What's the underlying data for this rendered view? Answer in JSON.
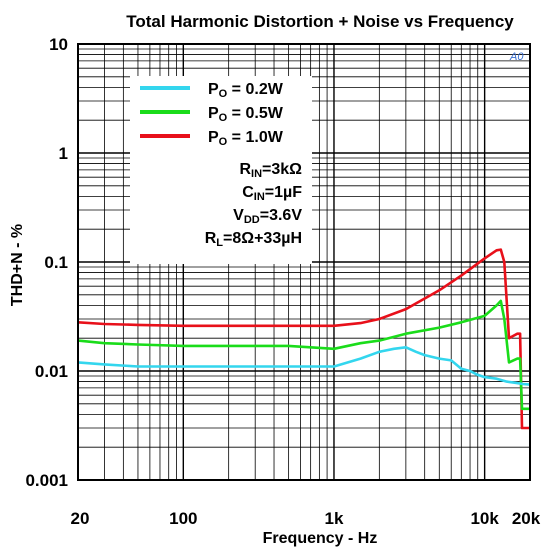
{
  "chart_data": {
    "type": "line",
    "title": "Total Harmonic Distortion + Noise vs  Frequency",
    "xlabel": "Frequency - Hz",
    "ylabel": "THD+N - %",
    "x_scale": "log",
    "y_scale": "log",
    "xlim": [
      20,
      20000
    ],
    "ylim": [
      0.001,
      10
    ],
    "x_ticks": [
      {
        "value": 20,
        "label": "20"
      },
      {
        "value": 100,
        "label": "100"
      },
      {
        "value": 1000,
        "label": "1k"
      },
      {
        "value": 10000,
        "label": "10k"
      },
      {
        "value": 20000,
        "label": "20k"
      }
    ],
    "y_ticks": [
      {
        "value": 10,
        "label": "10"
      },
      {
        "value": 1,
        "label": "1"
      },
      {
        "value": 0.1,
        "label": "0.1"
      },
      {
        "value": 0.01,
        "label": "0.01"
      },
      {
        "value": 0.001,
        "label": "0.001"
      }
    ],
    "grid": true,
    "legend_position": "top-left",
    "series": [
      {
        "name": "Po = 1.0W",
        "legend_main": "P",
        "legend_sub": "O",
        "legend_rest": " = 1.0W",
        "color": "#e8101a",
        "x": [
          20,
          30,
          50,
          100,
          200,
          500,
          1000,
          1500,
          2000,
          3000,
          5000,
          7000,
          10000,
          12000,
          12800,
          13500,
          14500,
          15500,
          16500,
          17200,
          17700,
          18200,
          20000
        ],
        "y": [
          0.028,
          0.027,
          0.0265,
          0.026,
          0.026,
          0.026,
          0.026,
          0.0275,
          0.03,
          0.037,
          0.055,
          0.075,
          0.108,
          0.128,
          0.13,
          0.1,
          0.02,
          0.021,
          0.022,
          0.022,
          0.003,
          0.003,
          0.003
        ]
      },
      {
        "name": "Po = 0.5W",
        "legend_main": "P",
        "legend_sub": "O",
        "legend_rest": " = 0.5W",
        "color": "#1adc1a",
        "x": [
          20,
          30,
          50,
          100,
          200,
          500,
          1000,
          1500,
          2000,
          3000,
          5000,
          7000,
          10000,
          12000,
          12800,
          13500,
          14500,
          15500,
          16500,
          17200,
          17700,
          18200,
          20000
        ],
        "y": [
          0.019,
          0.018,
          0.0175,
          0.017,
          0.017,
          0.017,
          0.016,
          0.018,
          0.019,
          0.022,
          0.025,
          0.028,
          0.032,
          0.04,
          0.044,
          0.03,
          0.012,
          0.0125,
          0.013,
          0.013,
          0.0045,
          0.0045,
          0.0045
        ]
      },
      {
        "name": "Po = 0.2W",
        "legend_main": "P",
        "legend_sub": "O",
        "legend_rest": " = 0.2W",
        "color": "#33d6ee",
        "x": [
          20,
          30,
          50,
          100,
          200,
          500,
          1000,
          1500,
          2000,
          2500,
          3000,
          3500,
          4000,
          5000,
          6000,
          7000,
          8000,
          9000,
          10000,
          12000,
          14000,
          16000,
          18000,
          20000
        ],
        "y": [
          0.012,
          0.0115,
          0.011,
          0.011,
          0.011,
          0.011,
          0.011,
          0.013,
          0.015,
          0.016,
          0.0165,
          0.015,
          0.014,
          0.013,
          0.0125,
          0.0105,
          0.01,
          0.0092,
          0.0088,
          0.0085,
          0.008,
          0.0078,
          0.0076,
          0.0075
        ]
      }
    ],
    "legend_order": [
      "Po = 0.2W",
      "Po = 0.5W",
      "Po = 1.0W"
    ],
    "conditions": [
      {
        "main": "R",
        "sub": "IN",
        "rest": "=3kΩ"
      },
      {
        "main": "C",
        "sub": "IN",
        "rest": "=1µF"
      },
      {
        "main": "V",
        "sub": "DD",
        "rest": "=3.6V"
      },
      {
        "main": "R",
        "sub": "L",
        "rest": "=8Ω+33µH"
      }
    ],
    "logo_text": "A0"
  }
}
